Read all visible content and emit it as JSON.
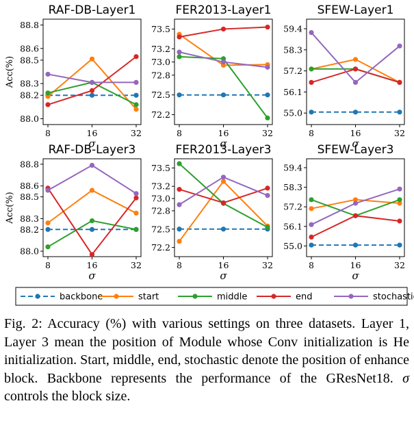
{
  "chart_data": [
    {
      "type": "line",
      "title": "RAF-DB-Layer1",
      "xlabel": "σ",
      "ylabel": "Acc(%)",
      "categories": [
        "8",
        "16",
        "32"
      ],
      "yticks": [
        "88.0",
        "88.2",
        "88.3",
        "88.5",
        "88.6",
        "88.8"
      ],
      "ylim": [
        87.95,
        88.85
      ],
      "series": [
        {
          "name": "backbone",
          "values": [
            88.2,
            88.2,
            88.2
          ]
        },
        {
          "name": "start",
          "values": [
            88.19,
            88.51,
            88.08
          ]
        },
        {
          "name": "middle",
          "values": [
            88.22,
            88.31,
            88.12
          ]
        },
        {
          "name": "end",
          "values": [
            88.12,
            88.24,
            88.53
          ]
        },
        {
          "name": "stochastic",
          "values": [
            88.38,
            88.31,
            88.31
          ]
        }
      ]
    },
    {
      "type": "line",
      "title": "FER2013-Layer1",
      "xlabel": "σ",
      "ylabel": "",
      "categories": [
        "8",
        "16",
        "32"
      ],
      "yticks": [
        "72.2",
        "72.5",
        "72.8",
        "73.0",
        "73.2",
        "73.5"
      ],
      "ylim": [
        72.05,
        73.65
      ],
      "series": [
        {
          "name": "backbone",
          "values": [
            72.5,
            72.5,
            72.5
          ]
        },
        {
          "name": "start",
          "values": [
            73.42,
            72.95,
            72.96
          ]
        },
        {
          "name": "middle",
          "values": [
            73.08,
            73.05,
            72.15
          ]
        },
        {
          "name": "end",
          "values": [
            73.38,
            73.5,
            73.53
          ]
        },
        {
          "name": "stochastic",
          "values": [
            73.15,
            73.0,
            72.92
          ]
        }
      ]
    },
    {
      "type": "line",
      "title": "SFEW-Layer1",
      "xlabel": "σ",
      "ylabel": "",
      "categories": [
        "8",
        "16",
        "32"
      ],
      "yticks": [
        "55.0",
        "56.1",
        "57.2",
        "58.3",
        "59.4"
      ],
      "ylim": [
        54.4,
        59.9
      ],
      "series": [
        {
          "name": "backbone",
          "values": [
            55.05,
            55.05,
            55.05
          ]
        },
        {
          "name": "start",
          "values": [
            57.3,
            57.8,
            56.6
          ]
        },
        {
          "name": "middle",
          "values": [
            57.3,
            57.3,
            56.6
          ]
        },
        {
          "name": "end",
          "values": [
            56.6,
            57.3,
            56.6
          ]
        },
        {
          "name": "stochastic",
          "values": [
            59.2,
            56.6,
            58.5
          ]
        }
      ]
    },
    {
      "type": "line",
      "title": "RAF-DB-Layer3",
      "xlabel": "σ",
      "ylabel": "Acc(%)",
      "categories": [
        "8",
        "16",
        "32"
      ],
      "yticks": [
        "88.0",
        "88.2",
        "88.3",
        "88.5",
        "88.6",
        "88.8"
      ],
      "ylim": [
        87.95,
        88.85
      ],
      "series": [
        {
          "name": "backbone",
          "values": [
            88.2,
            88.2,
            88.2
          ]
        },
        {
          "name": "start",
          "values": [
            88.26,
            88.56,
            88.35
          ]
        },
        {
          "name": "middle",
          "values": [
            88.04,
            88.28,
            88.2
          ]
        },
        {
          "name": "end",
          "values": [
            88.58,
            87.97,
            88.49
          ]
        },
        {
          "name": "stochastic",
          "values": [
            88.56,
            88.79,
            88.53
          ]
        }
      ]
    },
    {
      "type": "line",
      "title": "FER2013-Layer3",
      "xlabel": "σ",
      "ylabel": "",
      "categories": [
        "8",
        "16",
        "32"
      ],
      "yticks": [
        "72.2",
        "72.5",
        "72.8",
        "73.0",
        "73.2",
        "73.5"
      ],
      "ylim": [
        72.05,
        73.65
      ],
      "series": [
        {
          "name": "backbone",
          "values": [
            72.5,
            72.5,
            72.5
          ]
        },
        {
          "name": "start",
          "values": [
            72.3,
            73.28,
            72.55
          ]
        },
        {
          "name": "middle",
          "values": [
            73.57,
            72.92,
            72.53
          ]
        },
        {
          "name": "end",
          "values": [
            73.15,
            72.93,
            73.17
          ]
        },
        {
          "name": "stochastic",
          "values": [
            72.9,
            73.35,
            73.05
          ]
        }
      ]
    },
    {
      "type": "line",
      "title": "SFEW-Layer3",
      "xlabel": "σ",
      "ylabel": "",
      "categories": [
        "8",
        "16",
        "32"
      ],
      "yticks": [
        "55.0",
        "56.1",
        "57.2",
        "58.3",
        "59.4"
      ],
      "ylim": [
        54.4,
        59.9
      ],
      "series": [
        {
          "name": "backbone",
          "values": [
            55.05,
            55.05,
            55.05
          ]
        },
        {
          "name": "start",
          "values": [
            57.1,
            57.6,
            57.4
          ]
        },
        {
          "name": "middle",
          "values": [
            57.6,
            56.7,
            57.6
          ]
        },
        {
          "name": "end",
          "values": [
            55.5,
            56.7,
            56.4
          ]
        },
        {
          "name": "stochastic",
          "values": [
            56.2,
            57.4,
            58.2
          ]
        }
      ]
    }
  ],
  "legend": {
    "placement": "bottom",
    "items": [
      {
        "name": "backbone",
        "color": "#1f77b4",
        "style": "dashed"
      },
      {
        "name": "start",
        "color": "#ff7f0e",
        "style": "solid"
      },
      {
        "name": "middle",
        "color": "#2ca02c",
        "style": "solid"
      },
      {
        "name": "end",
        "color": "#d62728",
        "style": "solid"
      },
      {
        "name": "stochastic",
        "color": "#9467bd",
        "style": "solid"
      }
    ]
  },
  "colors": {
    "backbone": "#1f77b4",
    "start": "#ff7f0e",
    "middle": "#2ca02c",
    "end": "#d62728",
    "stochastic": "#9467bd"
  },
  "caption": {
    "prefix": "Fig. 2: Accuracy (%) with various settings on three datasets. Layer 1, Layer 3 mean the position of Module whose Conv initialization is He initialization. Start, middle, end, stochastic denote the position of enhance block. Backbone represents the performance of the GResNet18. ",
    "sigma": "σ",
    "suffix": " controls the block size."
  }
}
